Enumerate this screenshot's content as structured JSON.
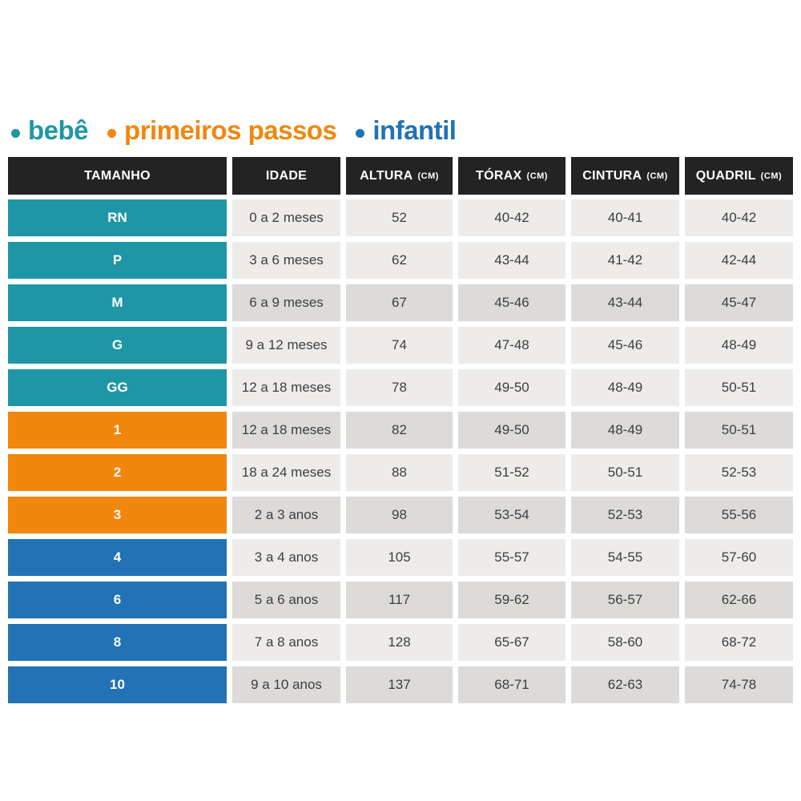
{
  "legend": {
    "items": [
      {
        "label": "bebê",
        "color": "#1f96a6"
      },
      {
        "label": "primeiros passos",
        "color": "#f1870d"
      },
      {
        "label": "infantil",
        "color": "#2272b5"
      }
    ]
  },
  "colors": {
    "header_bg": "#232323",
    "row_light": "#edecea",
    "row_dark": "#dcdbd9",
    "groups": {
      "bebê": "#1f96a6",
      "primeiros passos": "#f1870d",
      "infantil": "#2272b5"
    }
  },
  "table": {
    "columns": [
      {
        "label": "TAMANHO",
        "unit": ""
      },
      {
        "label": "IDADE",
        "unit": ""
      },
      {
        "label": "ALTURA",
        "unit": "(CM)"
      },
      {
        "label": "TÓRAX",
        "unit": "(CM)"
      },
      {
        "label": "CINTURA",
        "unit": "(CM)"
      },
      {
        "label": "QUADRIL",
        "unit": "(CM)"
      }
    ],
    "rows": [
      {
        "tamanho": "RN",
        "idade": "0 a 2 meses",
        "altura": "52",
        "torax": "40-42",
        "cintura": "40-41",
        "quadril": "40-42",
        "group": "bebê",
        "shade": "light"
      },
      {
        "tamanho": "P",
        "idade": "3 a 6 meses",
        "altura": "62",
        "torax": "43-44",
        "cintura": "41-42",
        "quadril": "42-44",
        "group": "bebê",
        "shade": "light"
      },
      {
        "tamanho": "M",
        "idade": "6 a 9 meses",
        "altura": "67",
        "torax": "45-46",
        "cintura": "43-44",
        "quadril": "45-47",
        "group": "bebê",
        "shade": "dark"
      },
      {
        "tamanho": "G",
        "idade": "9 a 12 meses",
        "altura": "74",
        "torax": "47-48",
        "cintura": "45-46",
        "quadril": "48-49",
        "group": "bebê",
        "shade": "light"
      },
      {
        "tamanho": "GG",
        "idade": "12 a 18 meses",
        "altura": "78",
        "torax": "49-50",
        "cintura": "48-49",
        "quadril": "50-51",
        "group": "bebê",
        "shade": "light"
      },
      {
        "tamanho": "1",
        "idade": "12 a 18 meses",
        "altura": "82",
        "torax": "49-50",
        "cintura": "48-49",
        "quadril": "50-51",
        "group": "primeiros passos",
        "shade": "dark"
      },
      {
        "tamanho": "2",
        "idade": "18 a 24 meses",
        "altura": "88",
        "torax": "51-52",
        "cintura": "50-51",
        "quadril": "52-53",
        "group": "primeiros passos",
        "shade": "light"
      },
      {
        "tamanho": "3",
        "idade": "2 a 3 anos",
        "altura": "98",
        "torax": "53-54",
        "cintura": "52-53",
        "quadril": "55-56",
        "group": "primeiros passos",
        "shade": "dark"
      },
      {
        "tamanho": "4",
        "idade": "3 a 4 anos",
        "altura": "105",
        "torax": "55-57",
        "cintura": "54-55",
        "quadril": "57-60",
        "group": "infantil",
        "shade": "light"
      },
      {
        "tamanho": "6",
        "idade": "5 a 6 anos",
        "altura": "117",
        "torax": "59-62",
        "cintura": "56-57",
        "quadril": "62-66",
        "group": "infantil",
        "shade": "dark"
      },
      {
        "tamanho": "8",
        "idade": "7 a 8 anos",
        "altura": "128",
        "torax": "65-67",
        "cintura": "58-60",
        "quadril": "68-72",
        "group": "infantil",
        "shade": "light"
      },
      {
        "tamanho": "10",
        "idade": "9 a 10 anos",
        "altura": "137",
        "torax": "68-71",
        "cintura": "62-63",
        "quadril": "74-78",
        "group": "infantil",
        "shade": "dark"
      }
    ]
  },
  "chart_data": {
    "type": "table",
    "title": "",
    "legend": [
      "bebê",
      "primeiros passos",
      "infantil"
    ],
    "legend_colors": [
      "#1f96a6",
      "#f1870d",
      "#2272b5"
    ],
    "columns": [
      "TAMANHO",
      "IDADE",
      "ALTURA (CM)",
      "TÓRAX (CM)",
      "CINTURA (CM)",
      "QUADRIL (CM)"
    ],
    "rows": [
      [
        "RN",
        "0 a 2 meses",
        "52",
        "40-42",
        "40-41",
        "40-42"
      ],
      [
        "P",
        "3 a 6 meses",
        "62",
        "43-44",
        "41-42",
        "42-44"
      ],
      [
        "M",
        "6 a 9 meses",
        "67",
        "45-46",
        "43-44",
        "45-47"
      ],
      [
        "G",
        "9 a 12 meses",
        "74",
        "47-48",
        "45-46",
        "48-49"
      ],
      [
        "GG",
        "12 a 18 meses",
        "78",
        "49-50",
        "48-49",
        "50-51"
      ],
      [
        "1",
        "12 a 18 meses",
        "82",
        "49-50",
        "48-49",
        "50-51"
      ],
      [
        "2",
        "18 a 24 meses",
        "88",
        "51-52",
        "50-51",
        "52-53"
      ],
      [
        "3",
        "2 a 3 anos",
        "98",
        "53-54",
        "52-53",
        "55-56"
      ],
      [
        "4",
        "3 a 4 anos",
        "105",
        "55-57",
        "54-55",
        "57-60"
      ],
      [
        "6",
        "5 a 6 anos",
        "117",
        "59-62",
        "56-57",
        "62-66"
      ],
      [
        "8",
        "7 a 8 anos",
        "128",
        "65-67",
        "58-60",
        "68-72"
      ],
      [
        "10",
        "9 a 10 anos",
        "137",
        "68-71",
        "62-63",
        "74-78"
      ]
    ],
    "row_groups": [
      "bebê",
      "bebê",
      "bebê",
      "bebê",
      "bebê",
      "primeiros passos",
      "primeiros passos",
      "primeiros passos",
      "infantil",
      "infantil",
      "infantil",
      "infantil"
    ]
  }
}
